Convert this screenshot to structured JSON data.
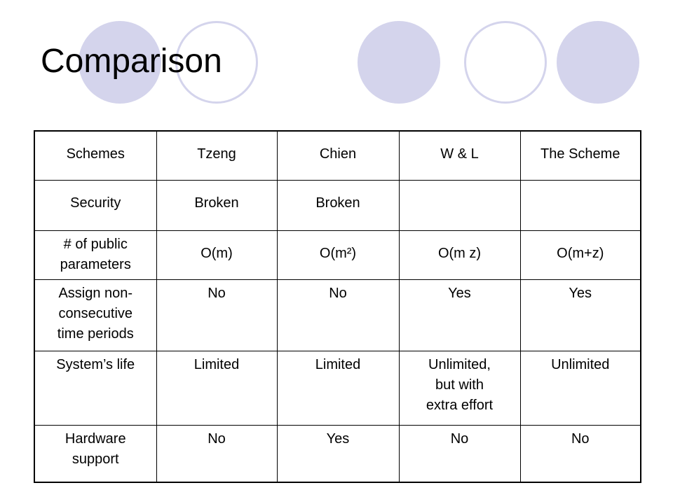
{
  "slide": {
    "title": "Comparison"
  },
  "table": {
    "headers": [
      "Schemes",
      "Tzeng",
      "Chien",
      "W & L",
      "The Scheme"
    ],
    "rows": [
      {
        "label": [
          "Security"
        ],
        "cells": [
          [
            "Broken"
          ],
          [
            "Broken"
          ],
          [
            ""
          ],
          [
            ""
          ]
        ]
      },
      {
        "label": [
          "# of public",
          "parameters"
        ],
        "cells": [
          [
            "O(m)"
          ],
          [
            "O(m²)"
          ],
          [
            "O(m z)"
          ],
          [
            "O(m+z)"
          ]
        ]
      },
      {
        "label": [
          "Assign non-",
          "consecutive",
          "time periods"
        ],
        "cells": [
          [
            "No"
          ],
          [
            "No"
          ],
          [
            "Yes"
          ],
          [
            "Yes"
          ]
        ]
      },
      {
        "label": [
          "System’s life"
        ],
        "cells": [
          [
            "Limited"
          ],
          [
            "Limited"
          ],
          [
            "Unlimited,",
            "but with",
            "extra effort"
          ],
          [
            "Unlimited"
          ]
        ]
      },
      {
        "label": [
          "Hardware",
          "support"
        ],
        "cells": [
          [
            "No"
          ],
          [
            "Yes"
          ],
          [
            "No"
          ],
          [
            "No"
          ]
        ]
      }
    ]
  }
}
